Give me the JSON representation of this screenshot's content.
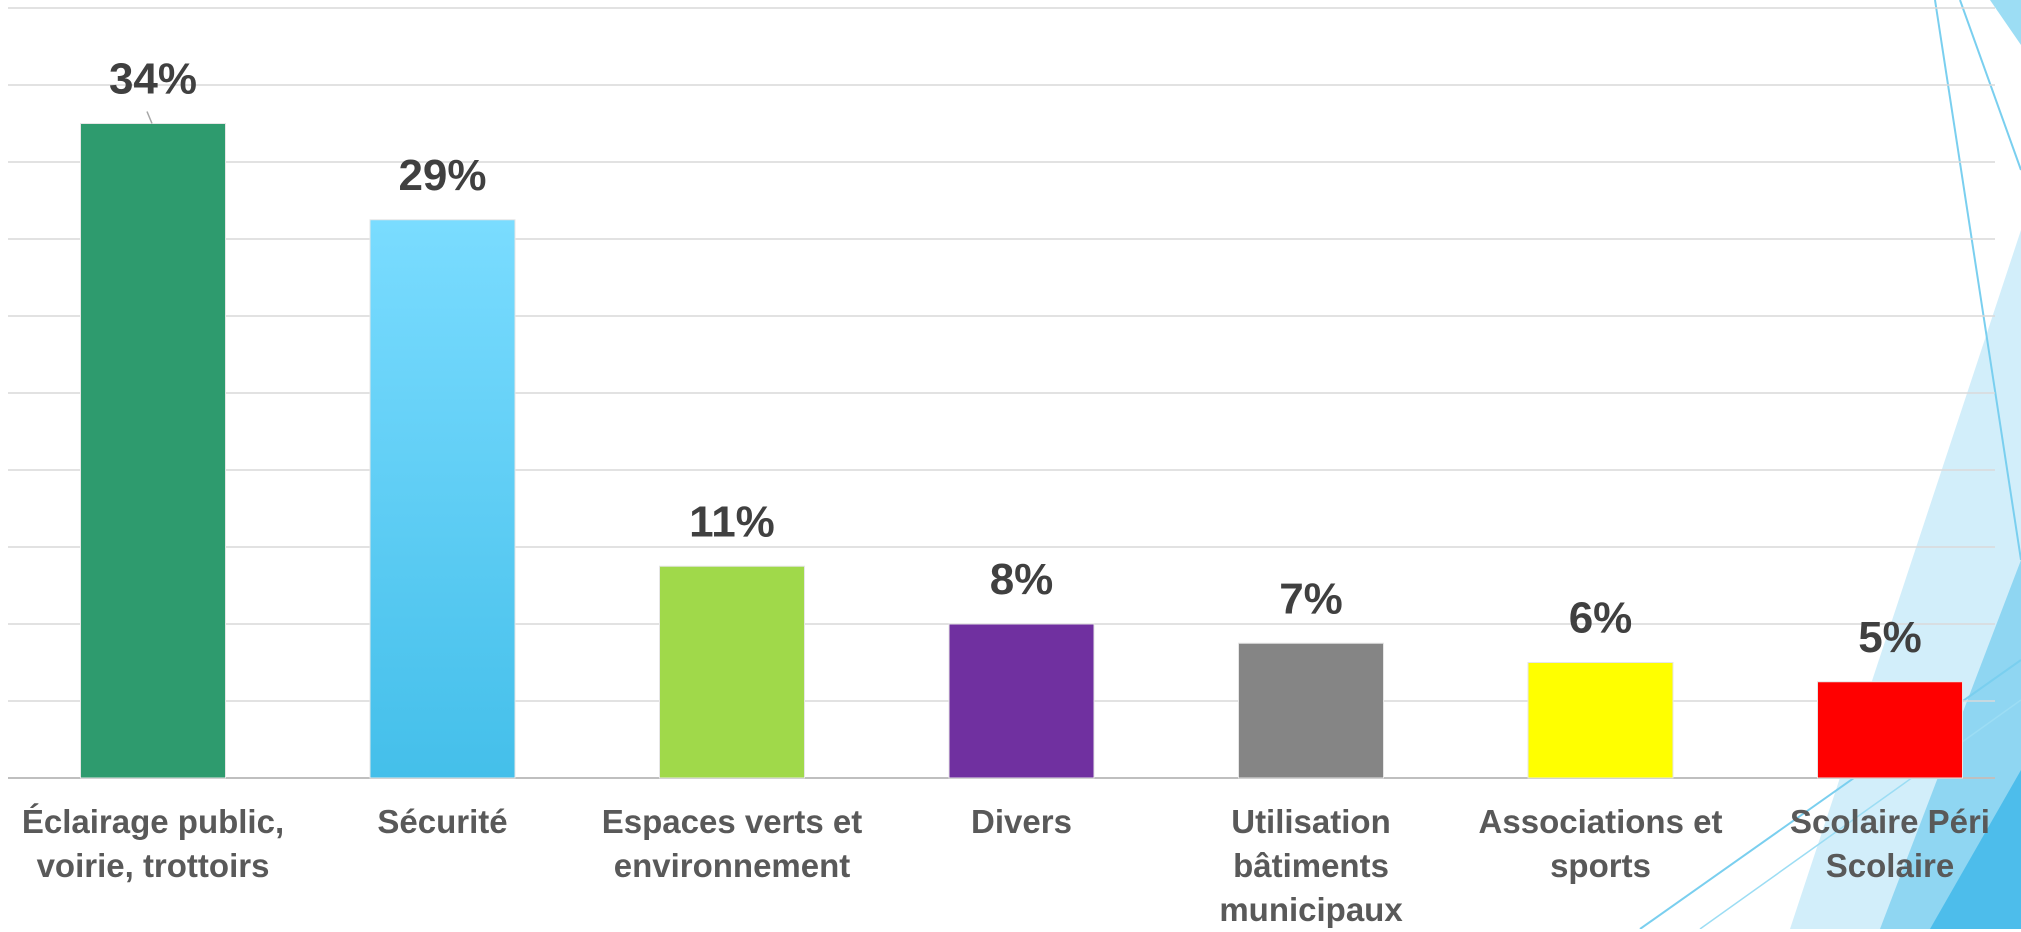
{
  "chart_data": {
    "type": "bar",
    "categories": [
      "Éclairage public, voirie, trottoirs",
      "Sécurité",
      "Espaces verts et environnement",
      "Divers",
      "Utilisation bâtiments municipaux",
      "Associations et sports",
      "Scolaire Péri Scolaire"
    ],
    "values": [
      34,
      29,
      11,
      8,
      7,
      6,
      5
    ],
    "value_labels": [
      "34%",
      "29%",
      "11%",
      "8%",
      "7%",
      "6%",
      "5%"
    ],
    "colors": [
      "#2E9B6E",
      "#55CCF7",
      "#A0D94A",
      "#7030A0",
      "#858585",
      "#FFFF00",
      "#FF0000"
    ],
    "title": "",
    "xlabel": "",
    "ylabel": "",
    "ylim": [
      0,
      40
    ],
    "grid": true,
    "legend": "none"
  }
}
